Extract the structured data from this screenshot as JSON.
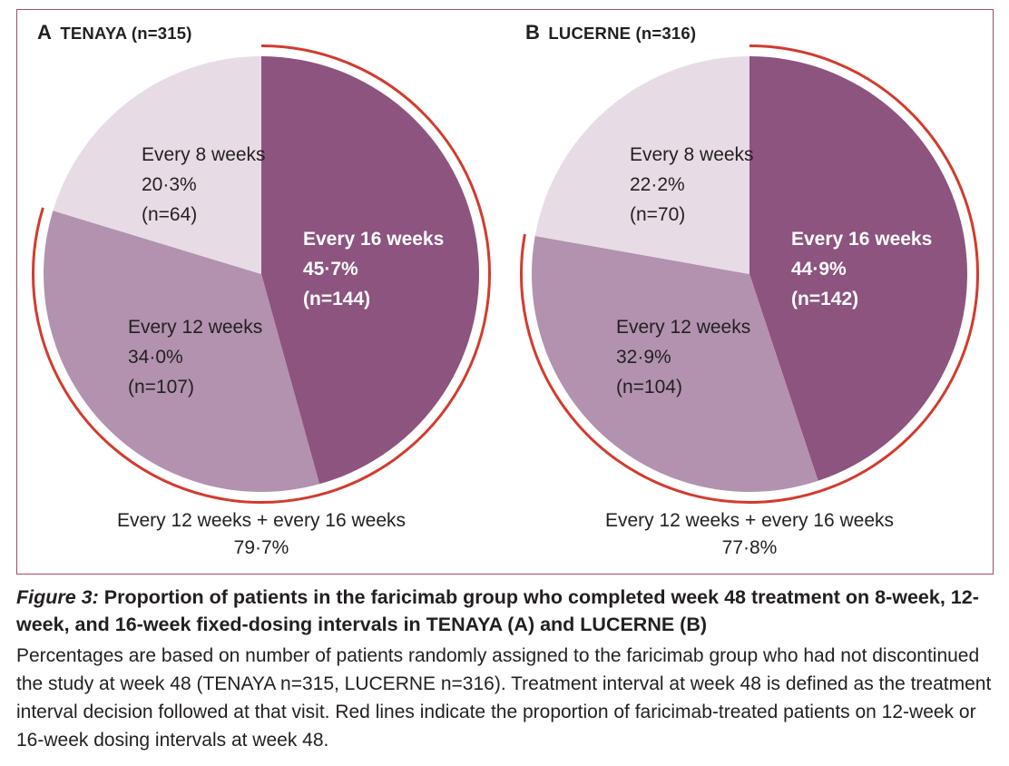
{
  "figure": {
    "caption": {
      "prefix": "Figure 3:",
      "title": "Proportion of patients in the faricimab group who completed week 48 treatment on 8-week, 12-week, and 16-week fixed-dosing intervals in TENAYA (A) and LUCERNE (B)",
      "body": "Percentages are based on number of patients randomly assigned to the faricimab group who had not discontinued the study at week 48 (TENAYA n=315, LUCERNE n=316). Treatment interval at week 48 is defined as the treatment interval decision followed at that visit. Red lines indicate the proportion of faricimab-treated patients on 12-week or 16-week dosing intervals at week 48."
    },
    "colors": {
      "slice_dark_purple": "#8c547e",
      "slice_medium_purple": "#b292ae",
      "slice_light_lavender": "#e7dce5",
      "annotation_red": "#d23b2e",
      "box_border": "#a64c5f",
      "text": "#231f20"
    }
  },
  "chart_data": [
    {
      "type": "pie",
      "panel": "A",
      "title": "TENAYA (n=315)",
      "start_angle_deg": 0,
      "direction": "clockwise",
      "categories": [
        "Every 16 weeks",
        "Every 12 weeks",
        "Every 8 weeks"
      ],
      "values": [
        45.7,
        34.0,
        20.3
      ],
      "counts": [
        144,
        107,
        64
      ],
      "colors": [
        "#8c547e",
        "#b292ae",
        "#e7dce5"
      ],
      "labels": [
        {
          "line1": "Every 16 weeks",
          "line2": "45·7%",
          "line3": "(n=144)"
        },
        {
          "line1": "Every 12 weeks",
          "line2": "34·0%",
          "line3": "(n=107)"
        },
        {
          "line1": "Every 8 weeks",
          "line2": "20·3%",
          "line3": "(n=64)"
        }
      ],
      "annotation": {
        "label": "Every 12 weeks + every 16 weeks",
        "pct": "79·7%",
        "value": 79.7,
        "color": "#d23b2e"
      }
    },
    {
      "type": "pie",
      "panel": "B",
      "title": "LUCERNE (n=316)",
      "start_angle_deg": 0,
      "direction": "clockwise",
      "categories": [
        "Every 16 weeks",
        "Every 12 weeks",
        "Every 8 weeks"
      ],
      "values": [
        44.9,
        32.9,
        22.2
      ],
      "counts": [
        142,
        104,
        70
      ],
      "colors": [
        "#8c547e",
        "#b292ae",
        "#e7dce5"
      ],
      "labels": [
        {
          "line1": "Every 16 weeks",
          "line2": "44·9%",
          "line3": "(n=142)"
        },
        {
          "line1": "Every 12 weeks",
          "line2": "32·9%",
          "line3": "(n=104)"
        },
        {
          "line1": "Every 8 weeks",
          "line2": "22·2%",
          "line3": "(n=70)"
        }
      ],
      "annotation": {
        "label": "Every 12 weeks + every 16 weeks",
        "pct": "77·8%",
        "value": 77.8,
        "color": "#d23b2e"
      }
    }
  ]
}
